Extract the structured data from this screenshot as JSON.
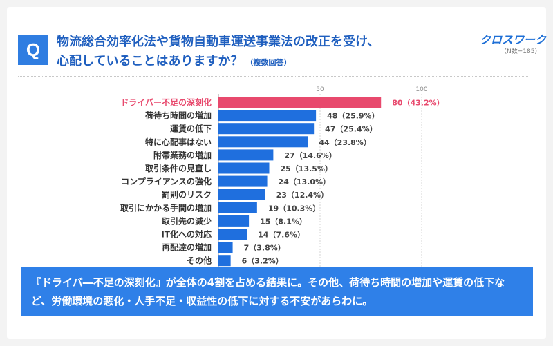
{
  "question": {
    "badge": "Q",
    "line1": "物流総合効率化法や貨物自動車運送事業法の改正を受け、",
    "line2": "心配していることはありますか？",
    "note": "（複数回答）"
  },
  "brand": {
    "logo_text": "クロスワーク",
    "sample": "（N数=185）"
  },
  "colors": {
    "highlight": "#e8496d",
    "bar": "#1f6fde",
    "summary_bg": "#2f80e8",
    "title": "#1f5fbf"
  },
  "chart_data": {
    "type": "bar",
    "orientation": "horizontal",
    "axis_ticks": [
      50,
      100
    ],
    "xlim": [
      0,
      100
    ],
    "grid": true,
    "categories": [
      "ドライバー不足の深刻化",
      "荷待ち時間の増加",
      "運賃の低下",
      "特に心配事はない",
      "附帯業務の増加",
      "取引条件の見直し",
      "コンプライアンスの強化",
      "罰則のリスク",
      "取引にかかる手間の増加",
      "取引先の減少",
      "IT化への対応",
      "再配達の増加",
      "その他"
    ],
    "values": [
      80,
      48,
      47,
      44,
      27,
      25,
      24,
      23,
      19,
      15,
      14,
      7,
      6
    ],
    "value_labels": [
      "80（43.2%）",
      "48（25.9%）",
      "47（25.4%）",
      "44（23.8%）",
      "27（14.6%）",
      "25（13.5%）",
      "24（13.0%）",
      "23（12.4%）",
      "19（10.3%）",
      "15（8.1%）",
      "14（7.6%）",
      "7（3.8%）",
      "6（3.2%）"
    ],
    "highlight_index": 0
  },
  "summary": {
    "text": "『ドライバ―不足の深刻化』が全体の4割を占める結果に。その他、荷待ち時間の増加や運賃の低下など、労働環境の悪化・人手不足・収益性の低下に対する不安があらわに。"
  }
}
